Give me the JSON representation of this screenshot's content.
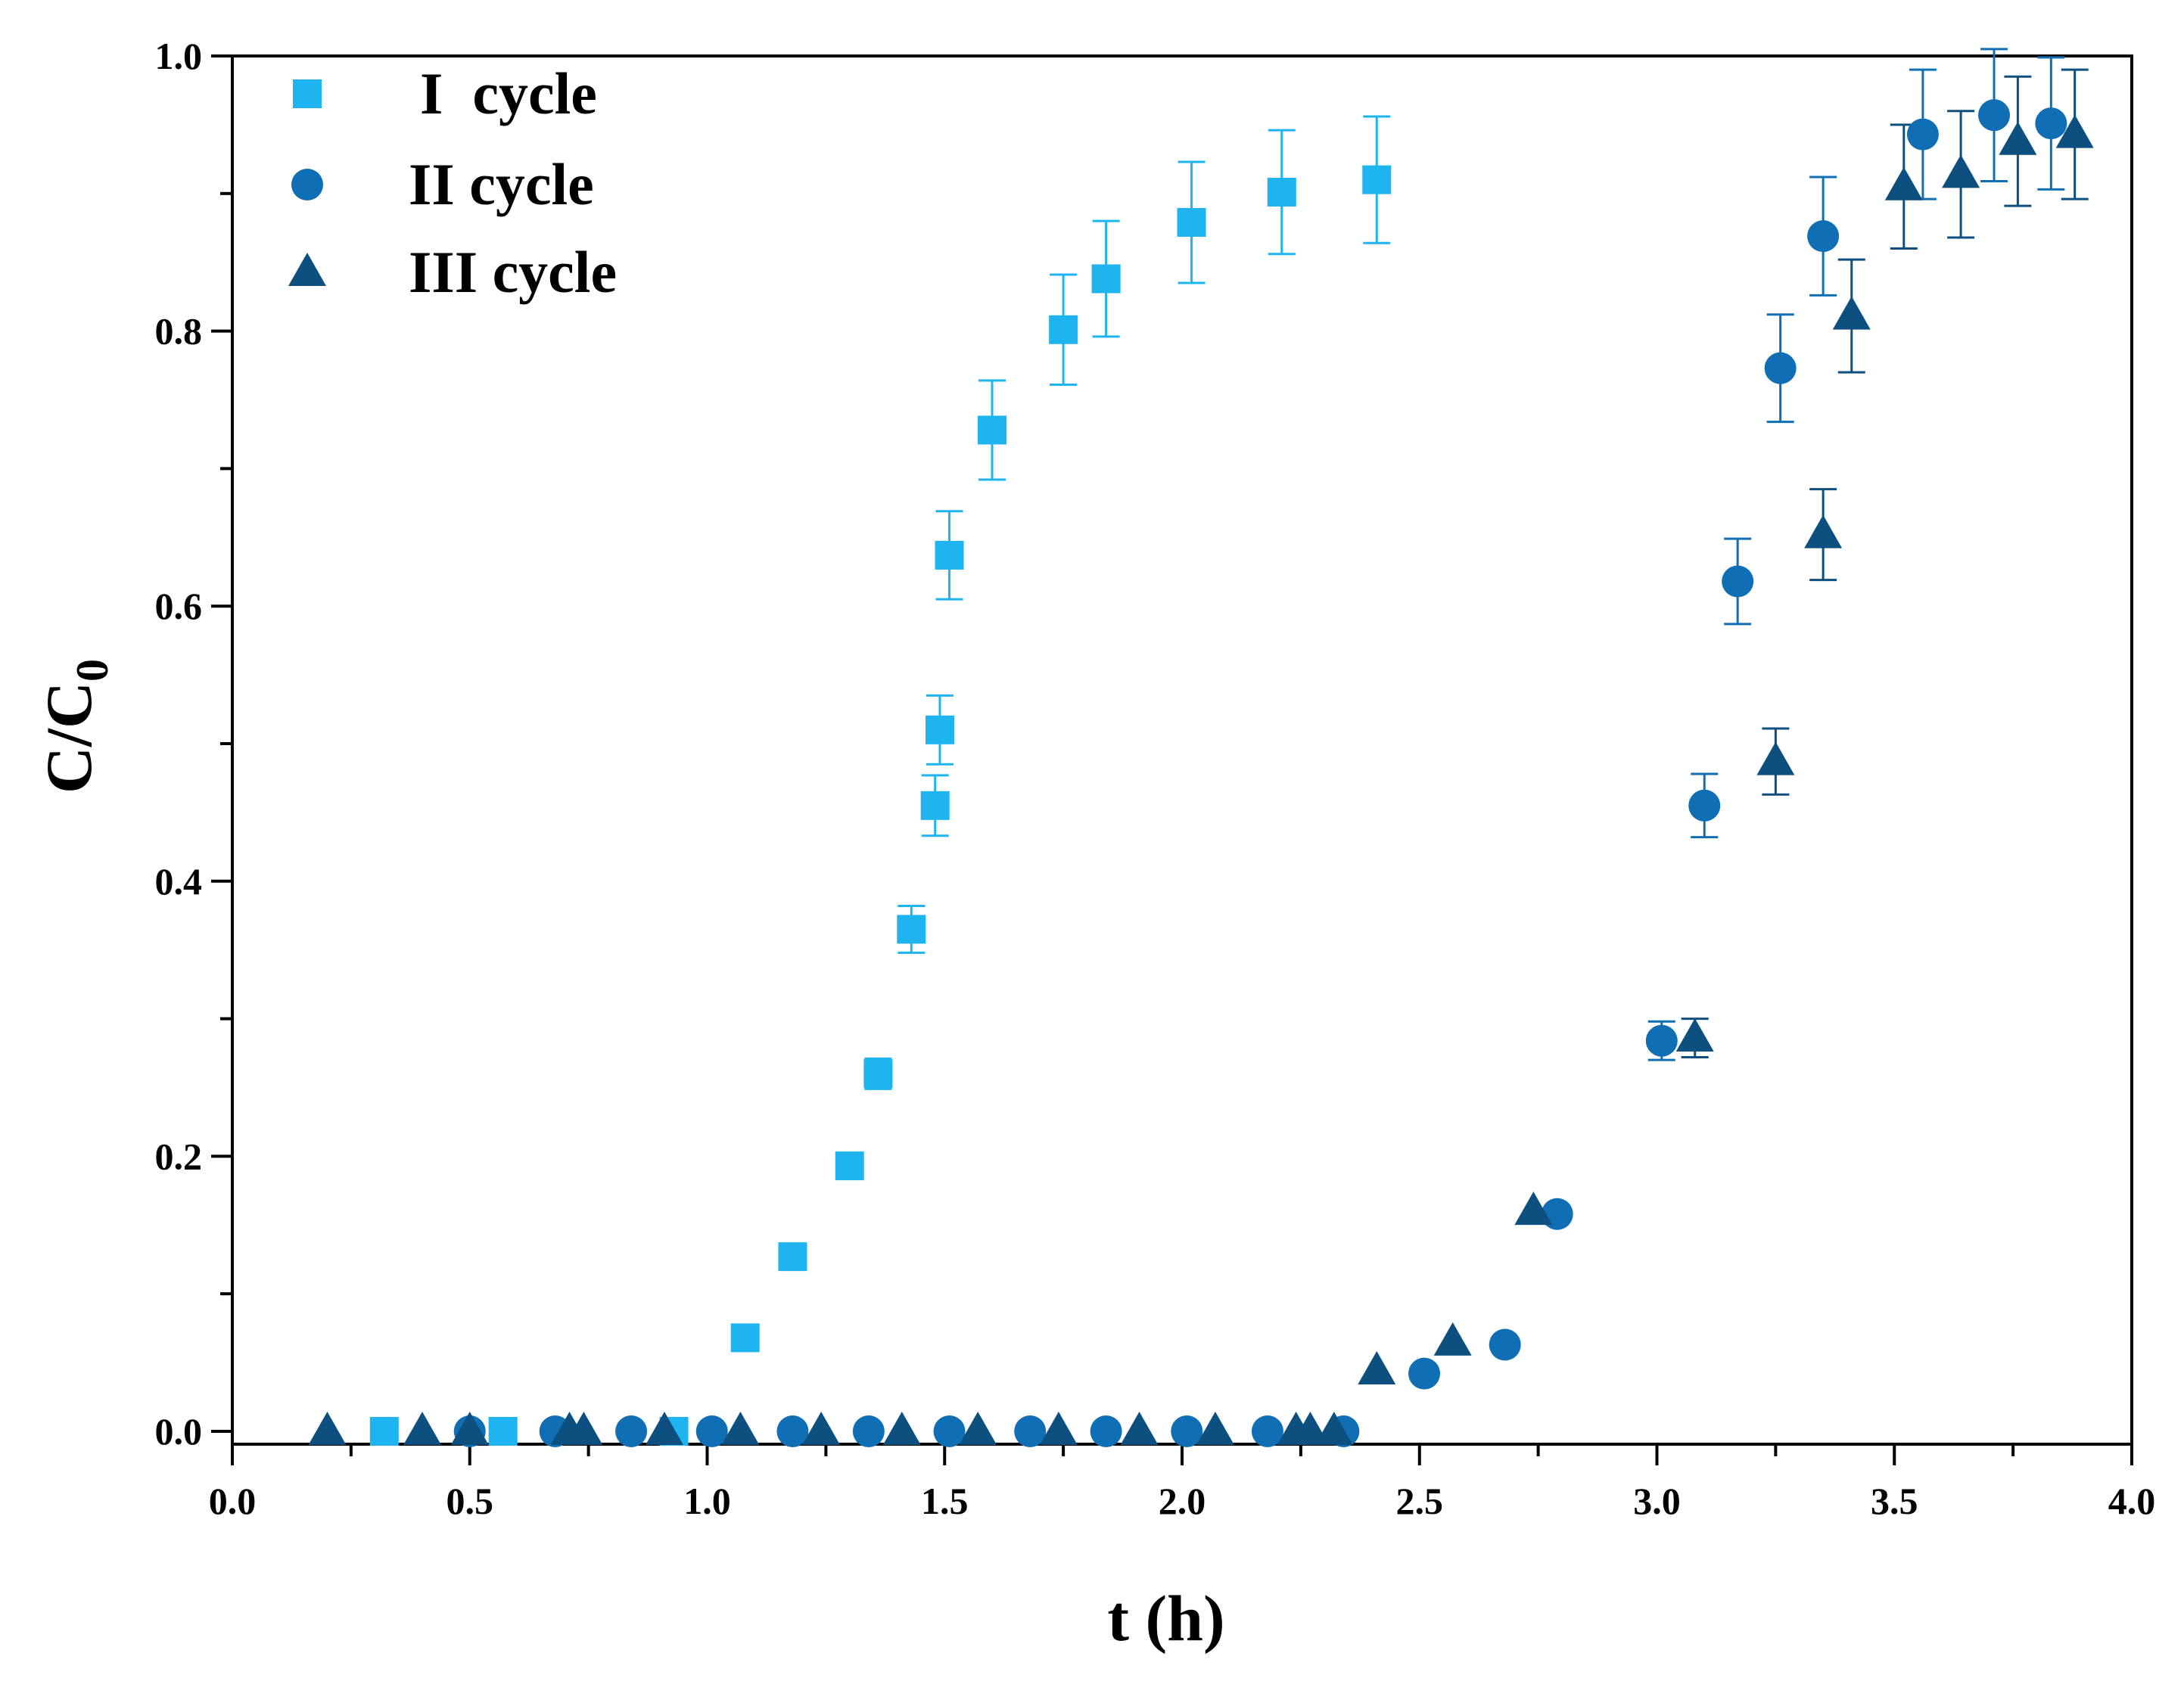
{
  "chart_data": {
    "type": "scatter",
    "title": "",
    "xlabel": "t (h)",
    "ylabel": "C/C",
    "ylabel_subscript": "0",
    "xlim": [
      0.0,
      4.0
    ],
    "ylim": [
      0.0,
      1.0
    ],
    "xticks": [
      "0.0",
      "0.5",
      "1.0",
      "1.5",
      "2.0",
      "2.5",
      "3.0",
      "3.5",
      "4.0"
    ],
    "yticks": [
      "0.0",
      "0.2",
      "0.4",
      "0.6",
      "0.8",
      "1.0"
    ],
    "grid": false,
    "legend_position": "top-left",
    "series": [
      {
        "name": "I  cycle",
        "marker": "square",
        "color": "#1eb4f0",
        "points": [
          {
            "x": 0.32,
            "y": 0.0,
            "err": 0.0
          },
          {
            "x": 0.57,
            "y": 0.0,
            "err": 0.0
          },
          {
            "x": 0.93,
            "y": 0.0,
            "err": 0.0
          },
          {
            "x": 1.08,
            "y": 0.068,
            "err": 0.0
          },
          {
            "x": 1.18,
            "y": 0.127,
            "err": 0.0
          },
          {
            "x": 1.3,
            "y": 0.193,
            "err": 0.0
          },
          {
            "x": 1.36,
            "y": 0.26,
            "err": 0.011
          },
          {
            "x": 1.43,
            "y": 0.365,
            "err": 0.017
          },
          {
            "x": 1.48,
            "y": 0.455,
            "err": 0.022
          },
          {
            "x": 1.49,
            "y": 0.51,
            "err": 0.025
          },
          {
            "x": 1.51,
            "y": 0.637,
            "err": 0.032
          },
          {
            "x": 1.6,
            "y": 0.728,
            "err": 0.036
          },
          {
            "x": 1.75,
            "y": 0.801,
            "err": 0.04
          },
          {
            "x": 1.84,
            "y": 0.838,
            "err": 0.042
          },
          {
            "x": 2.02,
            "y": 0.879,
            "err": 0.044
          },
          {
            "x": 2.21,
            "y": 0.901,
            "err": 0.045
          },
          {
            "x": 2.41,
            "y": 0.91,
            "err": 0.046
          }
        ]
      },
      {
        "name": "II cycle",
        "marker": "circle",
        "color": "#0f6eb4",
        "points": [
          {
            "x": 0.5,
            "y": 0.0,
            "err": 0.0
          },
          {
            "x": 0.68,
            "y": 0.0,
            "err": 0.0
          },
          {
            "x": 0.84,
            "y": 0.0,
            "err": 0.0
          },
          {
            "x": 1.01,
            "y": 0.0,
            "err": 0.0
          },
          {
            "x": 1.18,
            "y": 0.0,
            "err": 0.0
          },
          {
            "x": 1.34,
            "y": 0.0,
            "err": 0.0
          },
          {
            "x": 1.51,
            "y": 0.0,
            "err": 0.0
          },
          {
            "x": 1.68,
            "y": 0.0,
            "err": 0.0
          },
          {
            "x": 1.84,
            "y": 0.0,
            "err": 0.0
          },
          {
            "x": 2.01,
            "y": 0.0,
            "err": 0.0
          },
          {
            "x": 2.18,
            "y": 0.0,
            "err": 0.0
          },
          {
            "x": 2.34,
            "y": 0.0,
            "err": 0.0
          },
          {
            "x": 2.51,
            "y": 0.042,
            "err": 0.0
          },
          {
            "x": 2.68,
            "y": 0.063,
            "err": 0.0
          },
          {
            "x": 2.79,
            "y": 0.158,
            "err": 0.0
          },
          {
            "x": 3.01,
            "y": 0.284,
            "err": 0.014
          },
          {
            "x": 3.1,
            "y": 0.455,
            "err": 0.023
          },
          {
            "x": 3.17,
            "y": 0.618,
            "err": 0.031
          },
          {
            "x": 3.26,
            "y": 0.773,
            "err": 0.039
          },
          {
            "x": 3.35,
            "y": 0.869,
            "err": 0.043
          },
          {
            "x": 3.56,
            "y": 0.943,
            "err": 0.047
          },
          {
            "x": 3.71,
            "y": 0.957,
            "err": 0.048
          },
          {
            "x": 3.83,
            "y": 0.951,
            "err": 0.048
          }
        ]
      },
      {
        "name": "III cycle",
        "marker": "triangle",
        "color": "#0d4f7e",
        "points": [
          {
            "x": 0.2,
            "y": 0.0,
            "err": 0.0
          },
          {
            "x": 0.4,
            "y": 0.0,
            "err": 0.0
          },
          {
            "x": 0.5,
            "y": 0.0,
            "err": 0.0
          },
          {
            "x": 0.71,
            "y": 0.0,
            "err": 0.0
          },
          {
            "x": 0.74,
            "y": 0.0,
            "err": 0.0
          },
          {
            "x": 0.91,
            "y": 0.0,
            "err": 0.0
          },
          {
            "x": 1.07,
            "y": 0.0,
            "err": 0.0
          },
          {
            "x": 1.24,
            "y": 0.0,
            "err": 0.0
          },
          {
            "x": 1.41,
            "y": 0.0,
            "err": 0.0
          },
          {
            "x": 1.57,
            "y": 0.0,
            "err": 0.0
          },
          {
            "x": 1.74,
            "y": 0.0,
            "err": 0.0
          },
          {
            "x": 1.91,
            "y": 0.0,
            "err": 0.0
          },
          {
            "x": 2.07,
            "y": 0.0,
            "err": 0.0
          },
          {
            "x": 2.24,
            "y": 0.0,
            "err": 0.0
          },
          {
            "x": 2.27,
            "y": 0.0,
            "err": 0.0
          },
          {
            "x": 2.32,
            "y": 0.0,
            "err": 0.0
          },
          {
            "x": 2.41,
            "y": 0.044,
            "err": 0.0
          },
          {
            "x": 2.57,
            "y": 0.065,
            "err": 0.0
          },
          {
            "x": 2.74,
            "y": 0.16,
            "err": 0.0
          },
          {
            "x": 3.08,
            "y": 0.286,
            "err": 0.014
          },
          {
            "x": 3.25,
            "y": 0.487,
            "err": 0.024
          },
          {
            "x": 3.35,
            "y": 0.652,
            "err": 0.033
          },
          {
            "x": 3.41,
            "y": 0.811,
            "err": 0.041
          },
          {
            "x": 3.52,
            "y": 0.905,
            "err": 0.045
          },
          {
            "x": 3.64,
            "y": 0.914,
            "err": 0.046
          },
          {
            "x": 3.76,
            "y": 0.938,
            "err": 0.047
          },
          {
            "x": 3.88,
            "y": 0.943,
            "err": 0.047
          }
        ]
      }
    ]
  }
}
